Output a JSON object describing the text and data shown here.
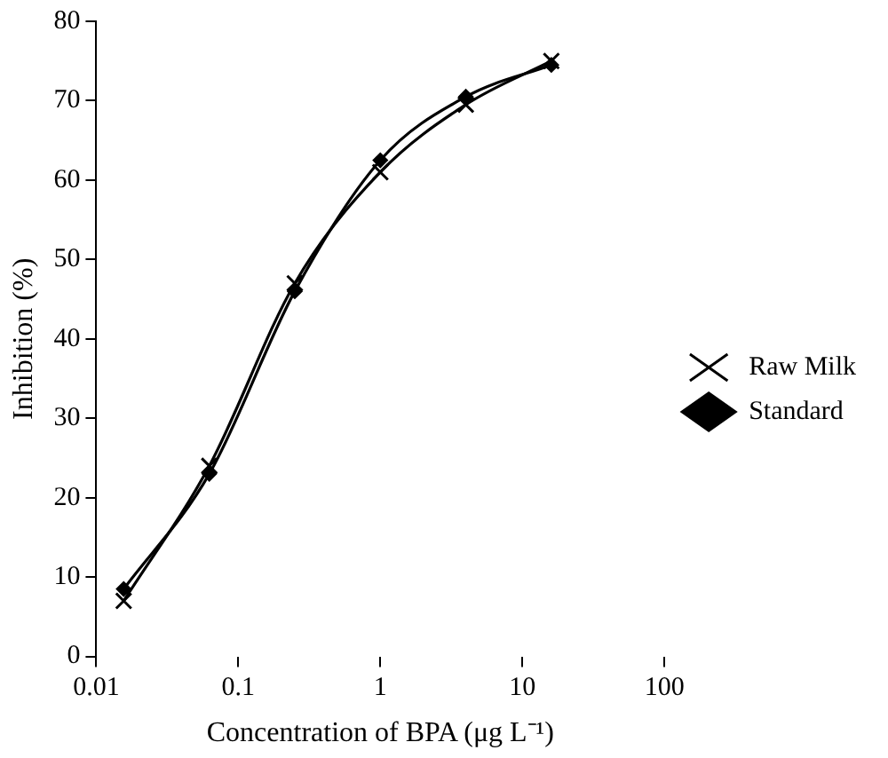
{
  "chart_data": {
    "type": "line",
    "xlabel": "Concentration of BPA (μg L⁻¹)",
    "ylabel": "Inhibition (%)",
    "log": "x",
    "xlim": [
      0.01,
      100
    ],
    "xticks": [
      0.01,
      0.1,
      1,
      10,
      100
    ],
    "ylim": [
      0,
      80
    ],
    "yticks": [
      0,
      10,
      20,
      30,
      40,
      50,
      60,
      70,
      80
    ],
    "x": [
      0.0156,
      0.0625,
      0.25,
      1,
      4,
      16
    ],
    "grid": false,
    "legend": "right",
    "line_style": "solid",
    "series": [
      {
        "name": "Standard",
        "color": "#000000",
        "marker": "diamond",
        "values": [
          8.5,
          23,
          46,
          62.5,
          70.5,
          74.5
        ]
      },
      {
        "name": "Raw Milk",
        "color": "#000000",
        "marker": "cross",
        "values": [
          7,
          24,
          47,
          61,
          69.5,
          75
        ]
      }
    ]
  }
}
